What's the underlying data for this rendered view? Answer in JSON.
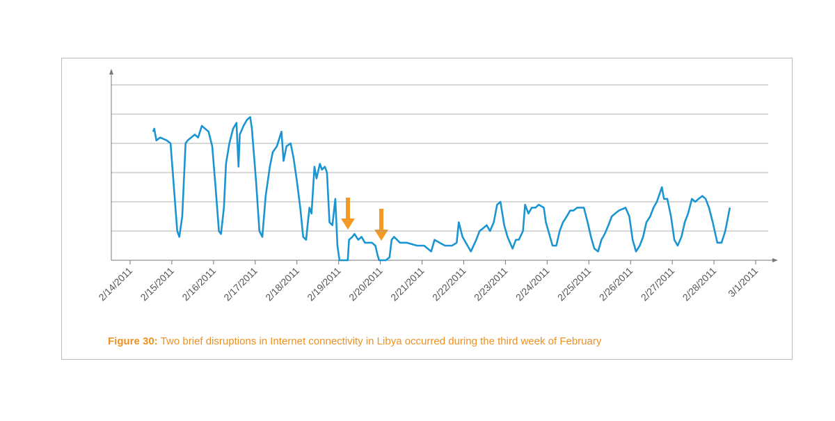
{
  "chart_data": {
    "type": "line",
    "caption_label": "Figure 30:",
    "caption": "Two brief disruptions in Internet connectivity in Libya occurred during the third week of February",
    "x": [
      0.55,
      0.58,
      0.63,
      0.72,
      0.88,
      0.97,
      1.05,
      1.13,
      1.18,
      1.25,
      1.33,
      1.38,
      1.55,
      1.63,
      1.72,
      1.8,
      1.88,
      1.97,
      2.05,
      2.13,
      2.18,
      2.25,
      2.3,
      2.38,
      2.47,
      2.55,
      2.6,
      2.63,
      2.72,
      2.8,
      2.88,
      2.92,
      3.02,
      3.1,
      3.17,
      3.25,
      3.35,
      3.42,
      3.52,
      3.63,
      3.68,
      3.75,
      3.85,
      3.92,
      4.0,
      4.08,
      4.15,
      4.22,
      4.3,
      4.35,
      4.42,
      4.47,
      4.55,
      4.6,
      4.67,
      4.72,
      4.78,
      4.85,
      4.92,
      4.97,
      5.02,
      5.17,
      5.22,
      5.25,
      5.33,
      5.38,
      5.47,
      5.55,
      5.63,
      5.8,
      5.88,
      5.93,
      5.97,
      6.13,
      6.22,
      6.27,
      6.33,
      6.47,
      6.63,
      6.88,
      7.05,
      7.22,
      7.3,
      7.42,
      7.55,
      7.72,
      7.83,
      7.88,
      7.97,
      8.05,
      8.17,
      8.3,
      8.38,
      8.47,
      8.55,
      8.63,
      8.72,
      8.8,
      8.88,
      8.97,
      9.05,
      9.17,
      9.25,
      9.32,
      9.42,
      9.47,
      9.55,
      9.63,
      9.72,
      9.8,
      9.92,
      9.97,
      10.05,
      10.13,
      10.22,
      10.3,
      10.38,
      10.47,
      10.55,
      10.63,
      10.72,
      10.88,
      10.97,
      11.05,
      11.13,
      11.22,
      11.3,
      11.38,
      11.47,
      11.55,
      11.63,
      11.72,
      11.88,
      11.97,
      12.05,
      12.13,
      12.22,
      12.3,
      12.38,
      12.47,
      12.55,
      12.63,
      12.75,
      12.8,
      12.88,
      12.97,
      13.05,
      13.13,
      13.22,
      13.3,
      13.38,
      13.47,
      13.55,
      13.63,
      13.72,
      13.8,
      13.88,
      13.97,
      14.08,
      14.18,
      14.27,
      14.38
    ],
    "series": [
      {
        "color": "#1b95d2",
        "values": [
          4.4,
          4.5,
          4.1,
          4.2,
          4.1,
          4.0,
          2.5,
          1.0,
          0.8,
          1.5,
          4.0,
          4.1,
          4.3,
          4.2,
          4.6,
          4.5,
          4.4,
          3.9,
          2.5,
          1.0,
          0.9,
          1.8,
          3.3,
          4.0,
          4.5,
          4.7,
          3.2,
          4.3,
          4.6,
          4.8,
          4.9,
          4.5,
          2.7,
          1.0,
          0.8,
          2.2,
          3.2,
          3.7,
          3.9,
          4.4,
          3.4,
          3.9,
          4.0,
          3.5,
          2.7,
          1.8,
          0.8,
          0.7,
          1.8,
          1.6,
          3.2,
          2.8,
          3.3,
          3.1,
          3.2,
          3.0,
          1.3,
          1.2,
          2.1,
          0.5,
          0.0,
          0.0,
          0.0,
          0.7,
          0.8,
          0.9,
          0.7,
          0.8,
          0.6,
          0.6,
          0.5,
          0.2,
          0.0,
          0.0,
          0.1,
          0.7,
          0.8,
          0.6,
          0.6,
          0.5,
          0.5,
          0.3,
          0.7,
          0.6,
          0.5,
          0.5,
          0.6,
          1.3,
          0.8,
          0.6,
          0.3,
          0.7,
          1.0,
          1.1,
          1.2,
          1.0,
          1.3,
          1.9,
          2.0,
          1.2,
          0.8,
          0.4,
          0.7,
          0.7,
          1.0,
          1.9,
          1.6,
          1.8,
          1.8,
          1.9,
          1.8,
          1.3,
          0.9,
          0.5,
          0.5,
          1.0,
          1.3,
          1.5,
          1.7,
          1.7,
          1.8,
          1.8,
          1.3,
          0.8,
          0.4,
          0.3,
          0.7,
          0.9,
          1.2,
          1.5,
          1.6,
          1.7,
          1.8,
          1.5,
          0.7,
          0.3,
          0.5,
          0.8,
          1.3,
          1.5,
          1.8,
          2.0,
          2.5,
          2.1,
          2.1,
          1.5,
          0.7,
          0.5,
          0.8,
          1.3,
          1.6,
          2.1,
          2.0,
          2.1,
          2.2,
          2.1,
          1.8,
          1.3,
          0.6,
          0.6,
          1.0,
          1.8
        ]
      }
    ],
    "xlim": [
      -0.45,
      15.3
    ],
    "xticks": [
      {
        "value": 0,
        "label": "2/14/2011"
      },
      {
        "value": 1,
        "label": "2/15/2011"
      },
      {
        "value": 2,
        "label": "2/16/2011"
      },
      {
        "value": 3,
        "label": "2/17/2011"
      },
      {
        "value": 4,
        "label": "2/18/2011"
      },
      {
        "value": 5,
        "label": "2/19/2011"
      },
      {
        "value": 6,
        "label": "2/20/2011"
      },
      {
        "value": 7,
        "label": "2/21/2011"
      },
      {
        "value": 8,
        "label": "2/22/2011"
      },
      {
        "value": 9,
        "label": "2/23/2011"
      },
      {
        "value": 10,
        "label": "2/24/2011"
      },
      {
        "value": 11,
        "label": "2/25/2011"
      },
      {
        "value": 12,
        "label": "2/26/2011"
      },
      {
        "value": 13,
        "label": "2/27/2011"
      },
      {
        "value": 14,
        "label": "2/28/2011"
      },
      {
        "value": 15,
        "label": "3/1/2011"
      }
    ],
    "ylim": [
      0,
      6.5
    ],
    "yticks": [
      0,
      1,
      2,
      3,
      4,
      5,
      6
    ],
    "grid": true
  }
}
